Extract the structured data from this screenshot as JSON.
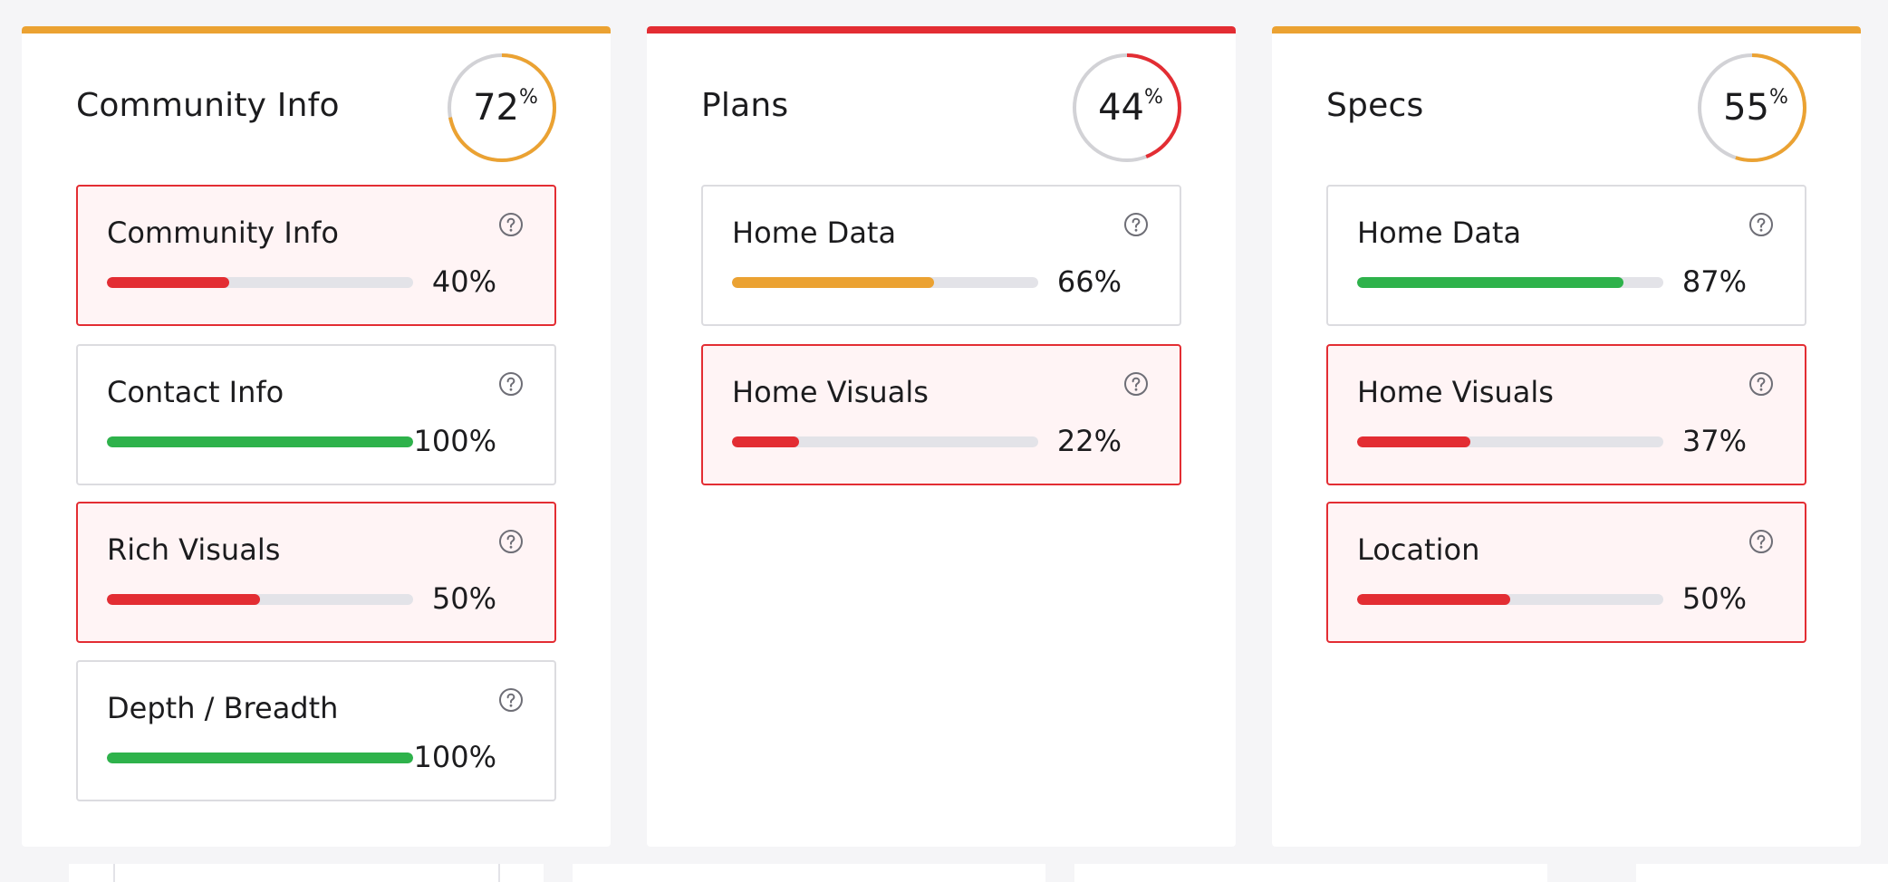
{
  "colors": {
    "red": "#e32d33",
    "orange": "#eba232",
    "green": "#2eb24b",
    "ring_track": "#d2d2d6",
    "help_icon": "#6e6e76"
  },
  "panels": [
    {
      "title": "Community Info",
      "score": "72",
      "score_unit": "%",
      "score_fraction": 0.72,
      "accent_color": "#eba232",
      "metrics": [
        {
          "label": "Community Info",
          "value": "40%",
          "fraction": 0.4,
          "color": "#e32d33",
          "warn": true,
          "icon": "question-circle-icon"
        },
        {
          "label": "Contact Info",
          "value": "100%",
          "fraction": 1.0,
          "color": "#2eb24b",
          "warn": false,
          "icon": "question-circle-icon"
        },
        {
          "label": "Rich Visuals",
          "value": "50%",
          "fraction": 0.5,
          "color": "#e32d33",
          "warn": true,
          "icon": "question-circle-icon"
        },
        {
          "label": "Depth / Breadth",
          "value": "100%",
          "fraction": 1.0,
          "color": "#2eb24b",
          "warn": false,
          "icon": "question-circle-icon"
        }
      ]
    },
    {
      "title": "Plans",
      "score": "44",
      "score_unit": "%",
      "score_fraction": 0.44,
      "accent_color": "#e32d33",
      "metrics": [
        {
          "label": "Home Data",
          "value": "66%",
          "fraction": 0.66,
          "color": "#eba232",
          "warn": false,
          "icon": "question-circle-icon"
        },
        {
          "label": "Home Visuals",
          "value": "22%",
          "fraction": 0.22,
          "color": "#e32d33",
          "warn": true,
          "icon": "question-circle-icon"
        }
      ]
    },
    {
      "title": "Specs",
      "score": "55",
      "score_unit": "%",
      "score_fraction": 0.55,
      "accent_color": "#eba232",
      "metrics": [
        {
          "label": "Home Data",
          "value": "87%",
          "fraction": 0.87,
          "color": "#2eb24b",
          "warn": false,
          "icon": "question-circle-icon"
        },
        {
          "label": "Home Visuals",
          "value": "37%",
          "fraction": 0.37,
          "color": "#e32d33",
          "warn": true,
          "icon": "question-circle-icon"
        },
        {
          "label": "Location",
          "value": "50%",
          "fraction": 0.5,
          "color": "#e32d33",
          "warn": true,
          "icon": "question-circle-icon"
        }
      ]
    }
  ]
}
